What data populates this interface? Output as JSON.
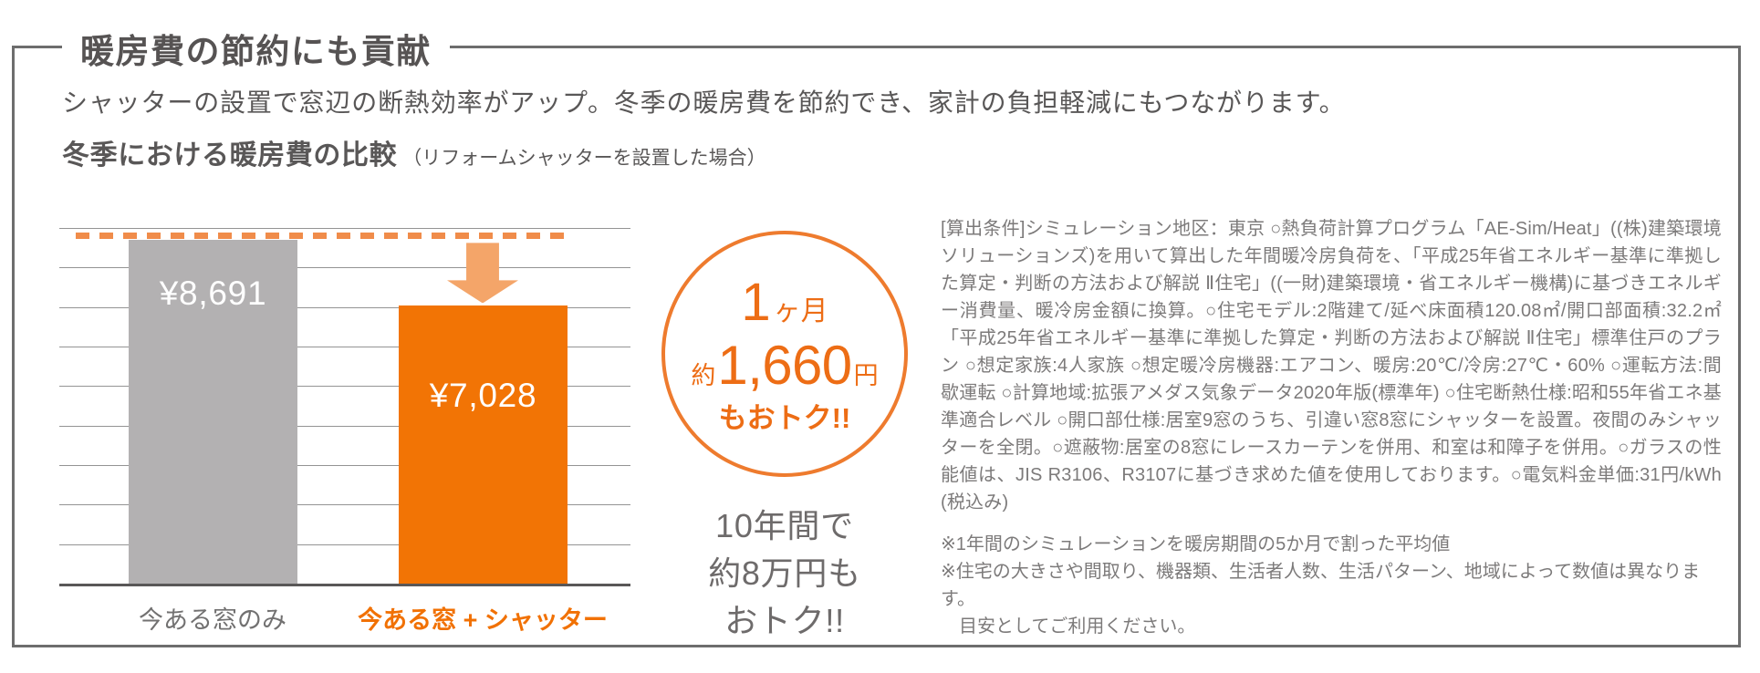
{
  "panel": {
    "title": "暖房費の節約にも貢献",
    "lead": "シャッターの設置で窓辺の断熱効率がアップ。冬季の暖房費を節約でき、家計の負担軽減にもつながります。"
  },
  "chart_heading": {
    "main": "冬季における暖房費の比較",
    "note": "（リフォームシャッターを設置した場合）"
  },
  "chart_data": {
    "type": "bar",
    "title": "冬季における暖房費の比較（リフォームシャッターを設置した場合）",
    "categories": [
      "今ある窓のみ",
      "今ある窓 + シャッター"
    ],
    "values": [
      8691,
      7028
    ],
    "value_labels": [
      "¥8,691",
      "¥7,028"
    ],
    "unit": "円（1ヶ月あたりの暖房費）",
    "ylim": [
      0,
      9000
    ],
    "gridline_step": 1000,
    "grid": true,
    "axis_tick_labels": "none",
    "bar_colors": [
      "#b3b1b2",
      "#f27405"
    ],
    "annotation": "今ある窓のみ（¥8,691）の水準から破線と下向き矢印で今ある窓+シャッター（¥7,028）への減少を表示"
  },
  "badge": {
    "line1_num": "1",
    "line1_unit": "ヶ月",
    "line2_prefix": "約",
    "line2_num": "1,660",
    "line2_unit": "円",
    "line3": "もおトク!!"
  },
  "savings_10y": {
    "line1": "10年間で",
    "line2": "約8万円も",
    "line3": "おトク!!"
  },
  "conditions": {
    "body": "[算出条件]シミュレーション地区：東京 ○熱負荷計算プログラム「AE-Sim/Heat」((株)建築環境ソリューションズ)を用いて算出した年間暖冷房負荷を、「平成25年省エネルギー基準に準拠した算定・判断の方法および解説 Ⅱ住宅」((一財)建築環境・省エネルギー機構)に基づきエネルギー消費量、暖冷房金額に換算。○住宅モデル:2階建て/延べ床面積120.08㎡/開口部面積:32.2㎡「平成25年省エネルギー基準に準拠した算定・判断の方法および解説 Ⅱ住宅」標準住戸のプラン ○想定家族:4人家族 ○想定暖冷房機器:エアコン、暖房:20℃/冷房:27℃・60% ○運転方法:間歇運転 ○計算地域:拡張アメダス気象データ2020年版(標準年) ○住宅断熱仕様:昭和55年省エネ基準適合レベル ○開口部仕様:居室9窓のうち、引違い窓8窓にシャッターを設置。夜間のみシャッターを全閉。○遮蔽物:居室の8窓にレースカーテンを併用、和室は和障子を併用。○ガラスの性能値は、JIS R3106、R3107に基づき求めた値を使用しております。○電気料金単価:31円/kWh (税込み)",
    "note1": "※1年間のシミュレーションを暖房期間の5か月で割った平均値",
    "note2": "※住宅の大きさや間取り、機器類、生活者人数、生活パターン、地域によって数値は異なります。",
    "note2_cont": "目安としてご利用ください。"
  },
  "colors": {
    "accent_orange": "#f27405",
    "arrow_orange": "#f4a569",
    "dash_orange": "#f08c4a",
    "bar_gray": "#b3b1b2",
    "text_dark": "#595757",
    "text_gray": "#7c7a7a",
    "panel_border": "#6d6d6d"
  }
}
